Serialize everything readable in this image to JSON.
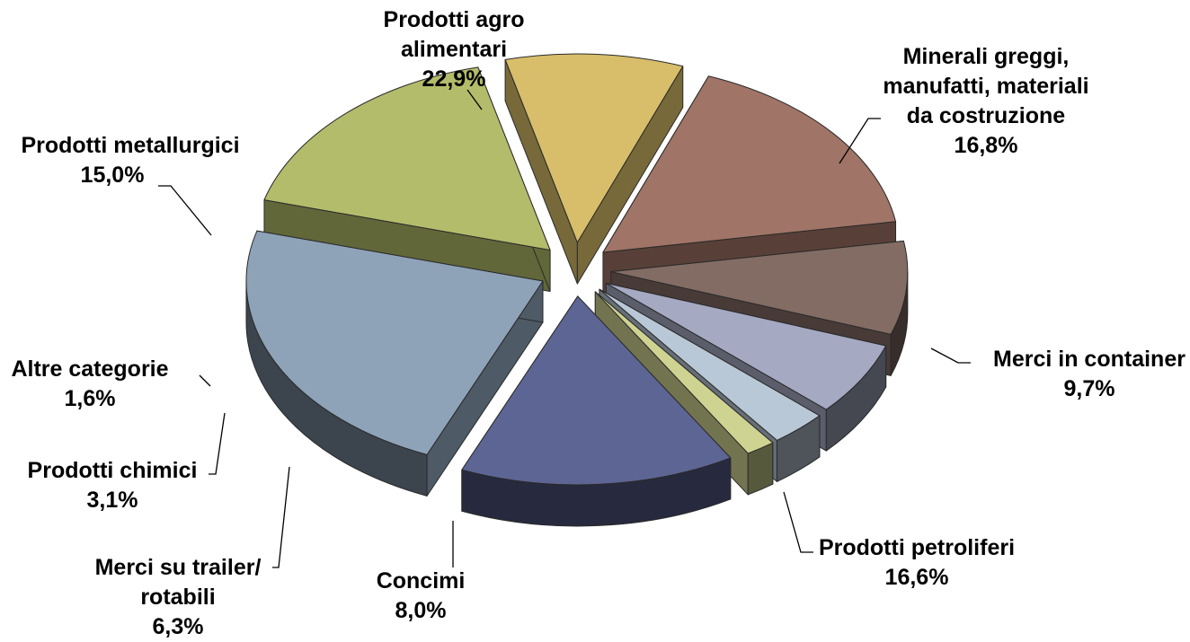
{
  "chart_data": {
    "type": "pie",
    "title": "",
    "style": "3d-exploded",
    "slices": [
      {
        "key": "agro",
        "lines": [
          "Prodotti agro",
          "alimentari"
        ],
        "value_label": "22,9%",
        "value": 22.9,
        "color": "#8EA3B8"
      },
      {
        "key": "minerali",
        "lines": [
          "Minerali greggi,",
          "manufatti, materiali",
          "da costruzione"
        ],
        "value_label": "16,8%",
        "value": 16.8,
        "color": "#B3BC6A"
      },
      {
        "key": "container",
        "lines": [
          "Merci in container"
        ],
        "value_label": "9,7%",
        "value": 9.7,
        "color": "#D8BE6A"
      },
      {
        "key": "petroliferi",
        "lines": [
          "Prodotti petroliferi"
        ],
        "value_label": "16,6%",
        "value": 16.6,
        "color": "#A07466"
      },
      {
        "key": "concimi",
        "lines": [
          "Concimi"
        ],
        "value_label": "8,0%",
        "value": 8.0,
        "color": "#826C64"
      },
      {
        "key": "trailer",
        "lines": [
          "Merci su trailer/",
          "rotabili"
        ],
        "value_label": "6,3%",
        "value": 6.3,
        "color": "#A5A9C2"
      },
      {
        "key": "chimici",
        "lines": [
          "Prodotti chimici"
        ],
        "value_label": "3,1%",
        "value": 3.1,
        "color": "#B9C8D6"
      },
      {
        "key": "altre",
        "lines": [
          "Altre categorie"
        ],
        "value_label": "1,6%",
        "value": 1.6,
        "color": "#CFD391"
      },
      {
        "key": "metallurgici",
        "lines": [
          "Prodotti metallurgici"
        ],
        "value_label": "15,0%",
        "value": 15.0,
        "color": "#5D6594"
      }
    ]
  }
}
